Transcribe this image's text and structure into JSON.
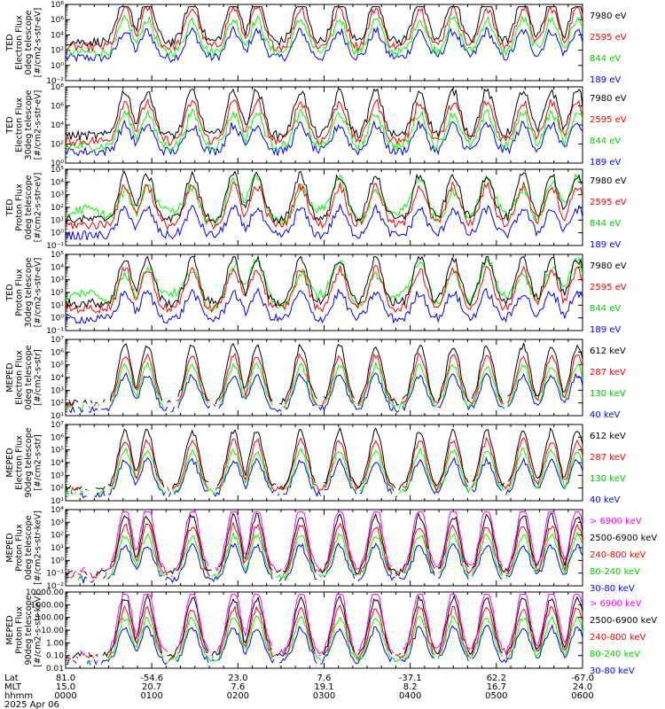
{
  "date_label": "2025 Apr 06",
  "colors": {
    "blue": "#0000ff",
    "red": "#ff0000",
    "green": "#00ff00",
    "black": "#000000",
    "magenta": "#ff00ff"
  },
  "x_axis": {
    "row_labels": [
      "Lat",
      "MLT",
      "hhmm"
    ],
    "ticks": [
      {
        "lat": "81.0",
        "mlt": "15.0",
        "hhmm": "0000"
      },
      {
        "lat": "-54.6",
        "mlt": "20.7",
        "hhmm": "0100"
      },
      {
        "lat": "23.0",
        "mlt": "7.6",
        "hhmm": "0200"
      },
      {
        "lat": "7.6",
        "mlt": "19.1",
        "hhmm": "0300"
      },
      {
        "lat": "-37.1",
        "mlt": "8.2",
        "hhmm": "0400"
      },
      {
        "lat": "62.2",
        "mlt": "16.7",
        "hhmm": "0500"
      },
      {
        "lat": "-67.0",
        "mlt": "24.0",
        "hhmm": "0600"
      }
    ]
  },
  "chart_data": [
    {
      "type": "line",
      "ylabel": [
        "TED",
        "Electron Flux",
        "0deg telescope",
        "[#/cm2-s-str-eV]"
      ],
      "ytick_labels": [
        "10⁻²",
        "10⁰",
        "10²",
        "10⁴",
        "10⁶",
        "10⁸"
      ],
      "ylim": [
        0.01,
        100000000
      ],
      "xlim": [
        "0000",
        "0600"
      ],
      "series": [
        {
          "name": "7980 eV",
          "color": "black"
        },
        {
          "name": "2595 eV",
          "color": "red"
        },
        {
          "name": "844 eV",
          "color": "green"
        },
        {
          "name": "189 eV",
          "color": "blue"
        }
      ]
    },
    {
      "type": "line",
      "ylabel": [
        "TED",
        "Electron Flux",
        "30deg telescope",
        "[#/cm2-s-str-eV]"
      ],
      "ytick_labels": [
        "10⁰",
        "10²",
        "10⁴",
        "10⁶",
        "10⁸"
      ],
      "ylim": [
        1,
        100000000
      ],
      "xlim": [
        "0000",
        "0600"
      ],
      "series": [
        {
          "name": "7980 eV",
          "color": "black"
        },
        {
          "name": "2595 eV",
          "color": "red"
        },
        {
          "name": "844 eV",
          "color": "green"
        },
        {
          "name": "189 eV",
          "color": "blue"
        }
      ]
    },
    {
      "type": "line",
      "ylabel": [
        "TED",
        "Proton Flux",
        "0deg telescope",
        "[#/cm2-s-str-eV]"
      ],
      "ytick_labels": [
        "10⁻¹",
        "10⁰",
        "10¹",
        "10²",
        "10³",
        "10⁴",
        "10⁵"
      ],
      "ylim": [
        0.1,
        100000
      ],
      "xlim": [
        "0000",
        "0600"
      ],
      "series": [
        {
          "name": "7980 eV",
          "color": "black"
        },
        {
          "name": "2595 eV",
          "color": "red"
        },
        {
          "name": "844 eV",
          "color": "green"
        },
        {
          "name": "189 eV",
          "color": "blue"
        }
      ]
    },
    {
      "type": "line",
      "ylabel": [
        "TED",
        "Proton Flux",
        "30deg telescope",
        "[#/cm2-s-str-eV]"
      ],
      "ytick_labels": [
        "10⁻¹",
        "10⁰",
        "10¹",
        "10²",
        "10³",
        "10⁴",
        "10⁵"
      ],
      "ylim": [
        0.1,
        100000
      ],
      "xlim": [
        "0000",
        "0600"
      ],
      "series": [
        {
          "name": "7980 eV",
          "color": "black"
        },
        {
          "name": "2595 eV",
          "color": "red"
        },
        {
          "name": "844 eV",
          "color": "green"
        },
        {
          "name": "189 eV",
          "color": "blue"
        }
      ]
    },
    {
      "type": "line",
      "ylabel": [
        "MEPED",
        "Electron Flux",
        "0deg telescope",
        "[#/cm2-s-str]"
      ],
      "ytick_labels": [
        "10¹",
        "10²",
        "10³",
        "10⁴",
        "10⁵",
        "10⁶",
        "10⁷"
      ],
      "ylim": [
        10,
        10000000
      ],
      "xlim": [
        "0000",
        "0600"
      ],
      "series": [
        {
          "name": "612 keV",
          "color": "black"
        },
        {
          "name": "287 keV",
          "color": "red"
        },
        {
          "name": "130 keV",
          "color": "green"
        },
        {
          "name": "40 keV",
          "color": "blue"
        }
      ]
    },
    {
      "type": "line",
      "ylabel": [
        "MEPED",
        "Electron Flux",
        "90deg telescope",
        "[#/cm2-s-str]"
      ],
      "ytick_labels": [
        "10¹",
        "10²",
        "10³",
        "10⁴",
        "10⁵",
        "10⁶",
        "10⁷"
      ],
      "ylim": [
        10,
        10000000
      ],
      "xlim": [
        "0000",
        "0600"
      ],
      "series": [
        {
          "name": "612 keV",
          "color": "black"
        },
        {
          "name": "287 keV",
          "color": "red"
        },
        {
          "name": "130 keV",
          "color": "green"
        },
        {
          "name": "40 keV",
          "color": "blue"
        }
      ]
    },
    {
      "type": "line",
      "ylabel": [
        "MEPED",
        "Proton Flux",
        "0deg telescope",
        "[#/cm2-s-str-keV]"
      ],
      "ytick_labels": [
        "10⁻²",
        "10⁻¹",
        "10⁰",
        "10¹",
        "10²",
        "10³",
        "10⁴"
      ],
      "ylim": [
        0.01,
        10000
      ],
      "xlim": [
        "0000",
        "0600"
      ],
      "series": [
        {
          "name": "> 6900 keV",
          "color": "magenta"
        },
        {
          "name": "2500-6900 keV",
          "color": "black"
        },
        {
          "name": "240-800 keV",
          "color": "red"
        },
        {
          "name": "80-240 keV",
          "color": "green"
        },
        {
          "name": "30-80 keV",
          "color": "blue"
        }
      ]
    },
    {
      "type": "line",
      "ylabel": [
        "MEPED",
        "Proton Flux",
        "90deg telescope",
        "[#/cm2-s-str-keV]"
      ],
      "ytick_labels": [
        "0.01",
        "0.10",
        "1.00",
        "10.00",
        "100.00",
        "1000.00",
        "10000.00"
      ],
      "ylim": [
        0.01,
        10000
      ],
      "xlim": [
        "0000",
        "0600"
      ],
      "series": [
        {
          "name": "> 6900 keV",
          "color": "magenta"
        },
        {
          "name": "2500-6900 keV",
          "color": "black"
        },
        {
          "name": "240-800 keV",
          "color": "red"
        },
        {
          "name": "80-240 keV",
          "color": "green"
        },
        {
          "name": "30-80 keV",
          "color": "blue"
        }
      ]
    }
  ]
}
